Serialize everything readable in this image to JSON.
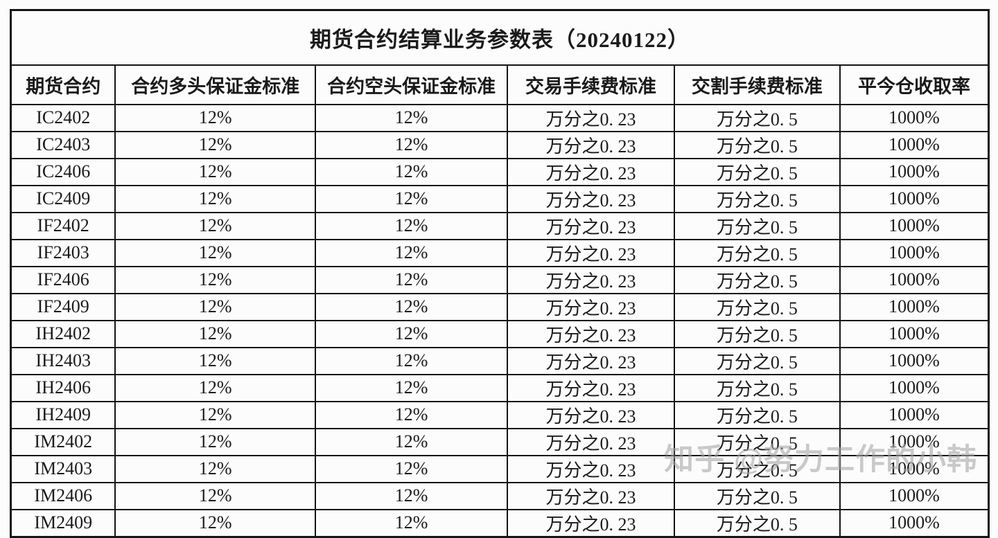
{
  "page": {
    "title": "期货合约结算业务参数表（20240122）"
  },
  "table": {
    "columns": [
      {
        "key": "contract",
        "label": "期货合约"
      },
      {
        "key": "long_margin",
        "label": "合约多头保证金标准"
      },
      {
        "key": "short_margin",
        "label": "合约空头保证金标准"
      },
      {
        "key": "trade_fee",
        "label": "交易手续费标准"
      },
      {
        "key": "delivery_fee",
        "label": "交割手续费标准"
      },
      {
        "key": "intraday_rate",
        "label": "平今仓收取率"
      }
    ],
    "rows": [
      {
        "contract": "IC2402",
        "long_margin": "12%",
        "short_margin": "12%",
        "trade_fee": "万分之0. 23",
        "delivery_fee": "万分之0. 5",
        "intraday_rate": "1000%"
      },
      {
        "contract": "IC2403",
        "long_margin": "12%",
        "short_margin": "12%",
        "trade_fee": "万分之0. 23",
        "delivery_fee": "万分之0. 5",
        "intraday_rate": "1000%"
      },
      {
        "contract": "IC2406",
        "long_margin": "12%",
        "short_margin": "12%",
        "trade_fee": "万分之0. 23",
        "delivery_fee": "万分之0. 5",
        "intraday_rate": "1000%"
      },
      {
        "contract": "IC2409",
        "long_margin": "12%",
        "short_margin": "12%",
        "trade_fee": "万分之0. 23",
        "delivery_fee": "万分之0. 5",
        "intraday_rate": "1000%"
      },
      {
        "contract": "IF2402",
        "long_margin": "12%",
        "short_margin": "12%",
        "trade_fee": "万分之0. 23",
        "delivery_fee": "万分之0. 5",
        "intraday_rate": "1000%"
      },
      {
        "contract": "IF2403",
        "long_margin": "12%",
        "short_margin": "12%",
        "trade_fee": "万分之0. 23",
        "delivery_fee": "万分之0. 5",
        "intraday_rate": "1000%"
      },
      {
        "contract": "IF2406",
        "long_margin": "12%",
        "short_margin": "12%",
        "trade_fee": "万分之0. 23",
        "delivery_fee": "万分之0. 5",
        "intraday_rate": "1000%"
      },
      {
        "contract": "IF2409",
        "long_margin": "12%",
        "short_margin": "12%",
        "trade_fee": "万分之0. 23",
        "delivery_fee": "万分之0. 5",
        "intraday_rate": "1000%"
      },
      {
        "contract": "IH2402",
        "long_margin": "12%",
        "short_margin": "12%",
        "trade_fee": "万分之0. 23",
        "delivery_fee": "万分之0. 5",
        "intraday_rate": "1000%"
      },
      {
        "contract": "IH2403",
        "long_margin": "12%",
        "short_margin": "12%",
        "trade_fee": "万分之0. 23",
        "delivery_fee": "万分之0. 5",
        "intraday_rate": "1000%"
      },
      {
        "contract": "IH2406",
        "long_margin": "12%",
        "short_margin": "12%",
        "trade_fee": "万分之0. 23",
        "delivery_fee": "万分之0. 5",
        "intraday_rate": "1000%"
      },
      {
        "contract": "IH2409",
        "long_margin": "12%",
        "short_margin": "12%",
        "trade_fee": "万分之0. 23",
        "delivery_fee": "万分之0. 5",
        "intraday_rate": "1000%"
      },
      {
        "contract": "IM2402",
        "long_margin": "12%",
        "short_margin": "12%",
        "trade_fee": "万分之0. 23",
        "delivery_fee": "万分之0. 5",
        "intraday_rate": "1000%"
      },
      {
        "contract": "IM2403",
        "long_margin": "12%",
        "short_margin": "12%",
        "trade_fee": "万分之0. 23",
        "delivery_fee": "万分之0. 5",
        "intraday_rate": "1000%"
      },
      {
        "contract": "IM2406",
        "long_margin": "12%",
        "short_margin": "12%",
        "trade_fee": "万分之0. 23",
        "delivery_fee": "万分之0. 5",
        "intraday_rate": "1000%"
      },
      {
        "contract": "IM2409",
        "long_margin": "12%",
        "short_margin": "12%",
        "trade_fee": "万分之0. 23",
        "delivery_fee": "万分之0. 5",
        "intraday_rate": "1000%"
      }
    ]
  },
  "watermark": {
    "text": "知乎 @努力工作的小韩"
  },
  "colors": {
    "background": "#fcfcfc",
    "text": "#1a1a1a",
    "border": "#141414",
    "watermark": "#a6a6a6"
  }
}
